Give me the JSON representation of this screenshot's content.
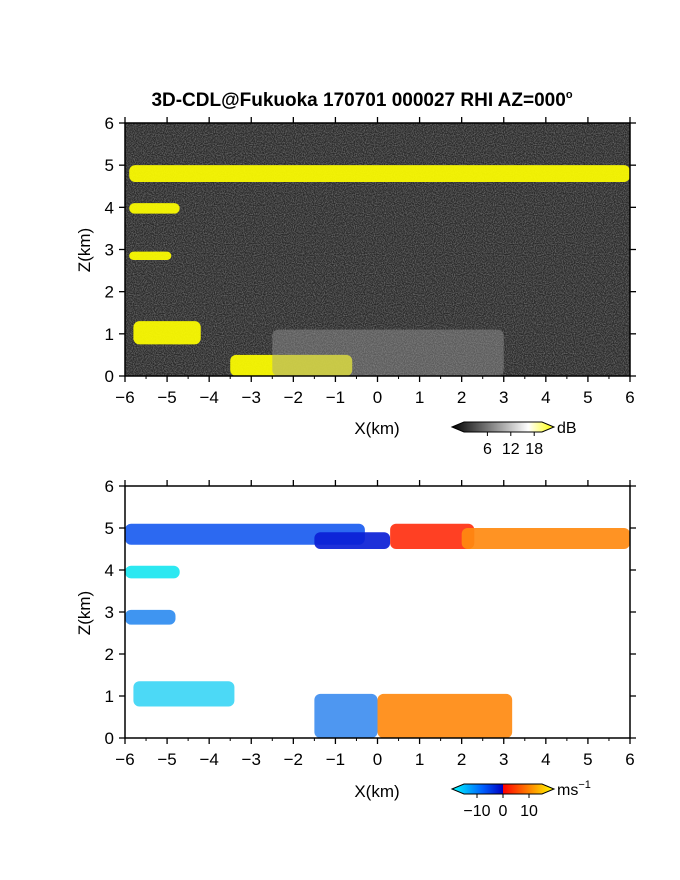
{
  "title": "3D-CDL@Fukuoka 170701 000027 RHI AZ=000",
  "title_superscript": "o",
  "chart_data": [
    {
      "type": "heatmap",
      "variable_unit": "dB",
      "xlabel": "X(km)",
      "ylabel": "Z(km)",
      "xlim": [
        -6,
        6
      ],
      "ylim": [
        0,
        6
      ],
      "x_ticks": [
        "−6",
        "−5",
        "−4",
        "−3",
        "−2",
        "−1",
        "0",
        "1",
        "2",
        "3",
        "4",
        "5",
        "6"
      ],
      "y_ticks": [
        "0",
        "1",
        "2",
        "3",
        "4",
        "5",
        "6"
      ],
      "colorbar": {
        "label": "dB",
        "ticks": [
          {
            "value": 6,
            "label": "6"
          },
          {
            "value": 12,
            "label": "12"
          },
          {
            "value": 18,
            "label": "18"
          }
        ],
        "range": [
          0,
          20
        ],
        "colors": [
          "#000000",
          "#ffffff",
          "#ffff00"
        ]
      },
      "background_color": "#2a2a2a",
      "features": [
        {
          "name": "upper cloud layer",
          "color": "#ffff00",
          "x_range": [
            -5.9,
            6.0
          ],
          "z_range": [
            4.6,
            5.0
          ]
        },
        {
          "name": "mid layer 4 km",
          "color": "#ffff00",
          "x_range": [
            -5.9,
            -4.7
          ],
          "z_range": [
            3.85,
            4.1
          ]
        },
        {
          "name": "layer 3 km",
          "color": "#ffff00",
          "x_range": [
            -5.9,
            -4.9
          ],
          "z_range": [
            2.75,
            2.95
          ]
        },
        {
          "name": "low cloud 1 km",
          "color": "#ffff00",
          "x_range": [
            -5.8,
            -4.2
          ],
          "z_range": [
            0.75,
            1.3
          ]
        },
        {
          "name": "ground clutter",
          "color": "#ffff00",
          "x_range": [
            -3.5,
            -0.6
          ],
          "z_range": [
            0.0,
            0.5
          ]
        },
        {
          "name": "boundary layer echo",
          "color": "#9a9a9a",
          "x_range": [
            -2.5,
            3.0
          ],
          "z_range": [
            0.0,
            1.1
          ]
        }
      ]
    },
    {
      "type": "heatmap",
      "variable_unit": "ms",
      "variable_unit_superscript": "−1",
      "xlabel": "X(km)",
      "ylabel": "Z(km)",
      "xlim": [
        -6,
        6
      ],
      "ylim": [
        0,
        6
      ],
      "x_ticks": [
        "−6",
        "−5",
        "−4",
        "−3",
        "−2",
        "−1",
        "0",
        "1",
        "2",
        "3",
        "4",
        "5",
        "6"
      ],
      "y_ticks": [
        "0",
        "1",
        "2",
        "3",
        "4",
        "5",
        "6"
      ],
      "colorbar": {
        "label": "ms",
        "label_superscript": "−1",
        "ticks": [
          {
            "value": -10,
            "label": "−10"
          },
          {
            "value": 0,
            "label": "0"
          },
          {
            "value": 10,
            "label": "10"
          }
        ],
        "range": [
          -15,
          15
        ],
        "colors": [
          "#00ffff",
          "#0060ff",
          "#0000c0",
          "#ff0000",
          "#ff8000",
          "#ffff00"
        ]
      },
      "background_color": "#ffffff",
      "features": [
        {
          "name": "upper layer approaching",
          "color": "#1a5cf0",
          "x_range": [
            -6.0,
            -0.3
          ],
          "z_range": [
            4.6,
            5.1
          ]
        },
        {
          "name": "upper layer core negative",
          "color": "#0b1fd6",
          "x_range": [
            -1.5,
            0.3
          ],
          "z_range": [
            4.5,
            4.9
          ]
        },
        {
          "name": "upper layer receding",
          "color": "#ff3010",
          "x_range": [
            0.3,
            2.3
          ],
          "z_range": [
            4.5,
            5.1
          ]
        },
        {
          "name": "upper layer far receding",
          "color": "#ff8a10",
          "x_range": [
            2.0,
            6.0
          ],
          "z_range": [
            4.5,
            5.0
          ]
        },
        {
          "name": "mid layer 4 km",
          "color": "#1ae6f0",
          "x_range": [
            -6.0,
            -4.7
          ],
          "z_range": [
            3.8,
            4.1
          ]
        },
        {
          "name": "layer 3 km",
          "color": "#2f8cf0",
          "x_range": [
            -6.0,
            -4.8
          ],
          "z_range": [
            2.7,
            3.05
          ]
        },
        {
          "name": "low cloud 1 km",
          "color": "#3dd6f5",
          "x_range": [
            -5.8,
            -3.4
          ],
          "z_range": [
            0.75,
            1.35
          ]
        },
        {
          "name": "boundary layer approaching",
          "color": "#3f8ef0",
          "x_range": [
            -1.5,
            0.0
          ],
          "z_range": [
            0.0,
            1.05
          ]
        },
        {
          "name": "boundary layer receding",
          "color": "#ff8a10",
          "x_range": [
            0.0,
            3.2
          ],
          "z_range": [
            0.0,
            1.05
          ]
        }
      ]
    }
  ]
}
